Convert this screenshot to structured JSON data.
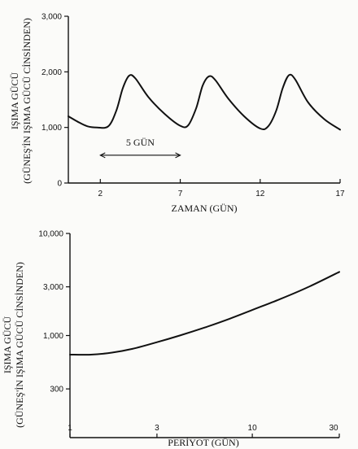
{
  "chart_data": [
    {
      "type": "line",
      "title": "",
      "xlabel": "ZAMAN (GÜN)",
      "ylabel_lines": [
        "IŞIMA GÜCÜ",
        "(GÜNEŞ'İN IŞIMA GÜCÜ CİNSİNDEN)"
      ],
      "xlim": [
        0,
        17
      ],
      "ylim": [
        0,
        3000
      ],
      "x_ticks": [
        2,
        7,
        12,
        17
      ],
      "y_ticks": [
        0,
        1000,
        2000,
        3000
      ],
      "y_tick_labels": [
        "0",
        "1,000",
        "2,000",
        "3,000"
      ],
      "annotation": {
        "label": "5 GÜN",
        "x_start": 2,
        "x_end": 7,
        "y": 500
      },
      "series": [
        {
          "x": [
            0,
            0.6,
            1.2,
            1.8,
            2.5,
            3.0,
            3.4,
            3.8,
            4.2,
            5.0,
            6.0,
            7.0,
            7.5,
            8.0,
            8.4,
            8.8,
            9.2,
            10.0,
            11.0,
            12.0,
            12.5,
            13.0,
            13.4,
            13.8,
            14.2,
            15.0,
            16.0,
            17.0
          ],
          "y": [
            1200,
            1100,
            1020,
            1000,
            1020,
            1300,
            1700,
            1930,
            1880,
            1550,
            1250,
            1030,
            1040,
            1350,
            1750,
            1920,
            1850,
            1520,
            1200,
            980,
            1020,
            1300,
            1700,
            1940,
            1860,
            1450,
            1150,
            960
          ]
        }
      ]
    },
    {
      "type": "line",
      "title": "",
      "xlabel": "PERİYOT (GÜN)",
      "ylabel_lines": [
        "IŞIMA GÜCÜ",
        "(GÜNEŞ'İN IŞIMA GÜCÜ CİNSİNDEN)"
      ],
      "x_scale": "log",
      "y_scale": "log",
      "xlim": [
        1,
        30
      ],
      "ylim": [
        100,
        10000
      ],
      "x_ticks": [
        1,
        3,
        10,
        30
      ],
      "x_tick_labels": [
        "1",
        "3",
        "10",
        "30"
      ],
      "y_ticks": [
        300,
        1000,
        3000,
        10000
      ],
      "y_tick_labels": [
        "300",
        "1,000",
        "3,000",
        "10,000"
      ],
      "series": [
        {
          "x": [
            1,
            1.3,
            1.7,
            2.2,
            3,
            4,
            5.5,
            7.5,
            10,
            14,
            20,
            30
          ],
          "y": [
            650,
            650,
            680,
            740,
            860,
            1000,
            1200,
            1460,
            1780,
            2250,
            2950,
            4200
          ]
        }
      ]
    }
  ]
}
